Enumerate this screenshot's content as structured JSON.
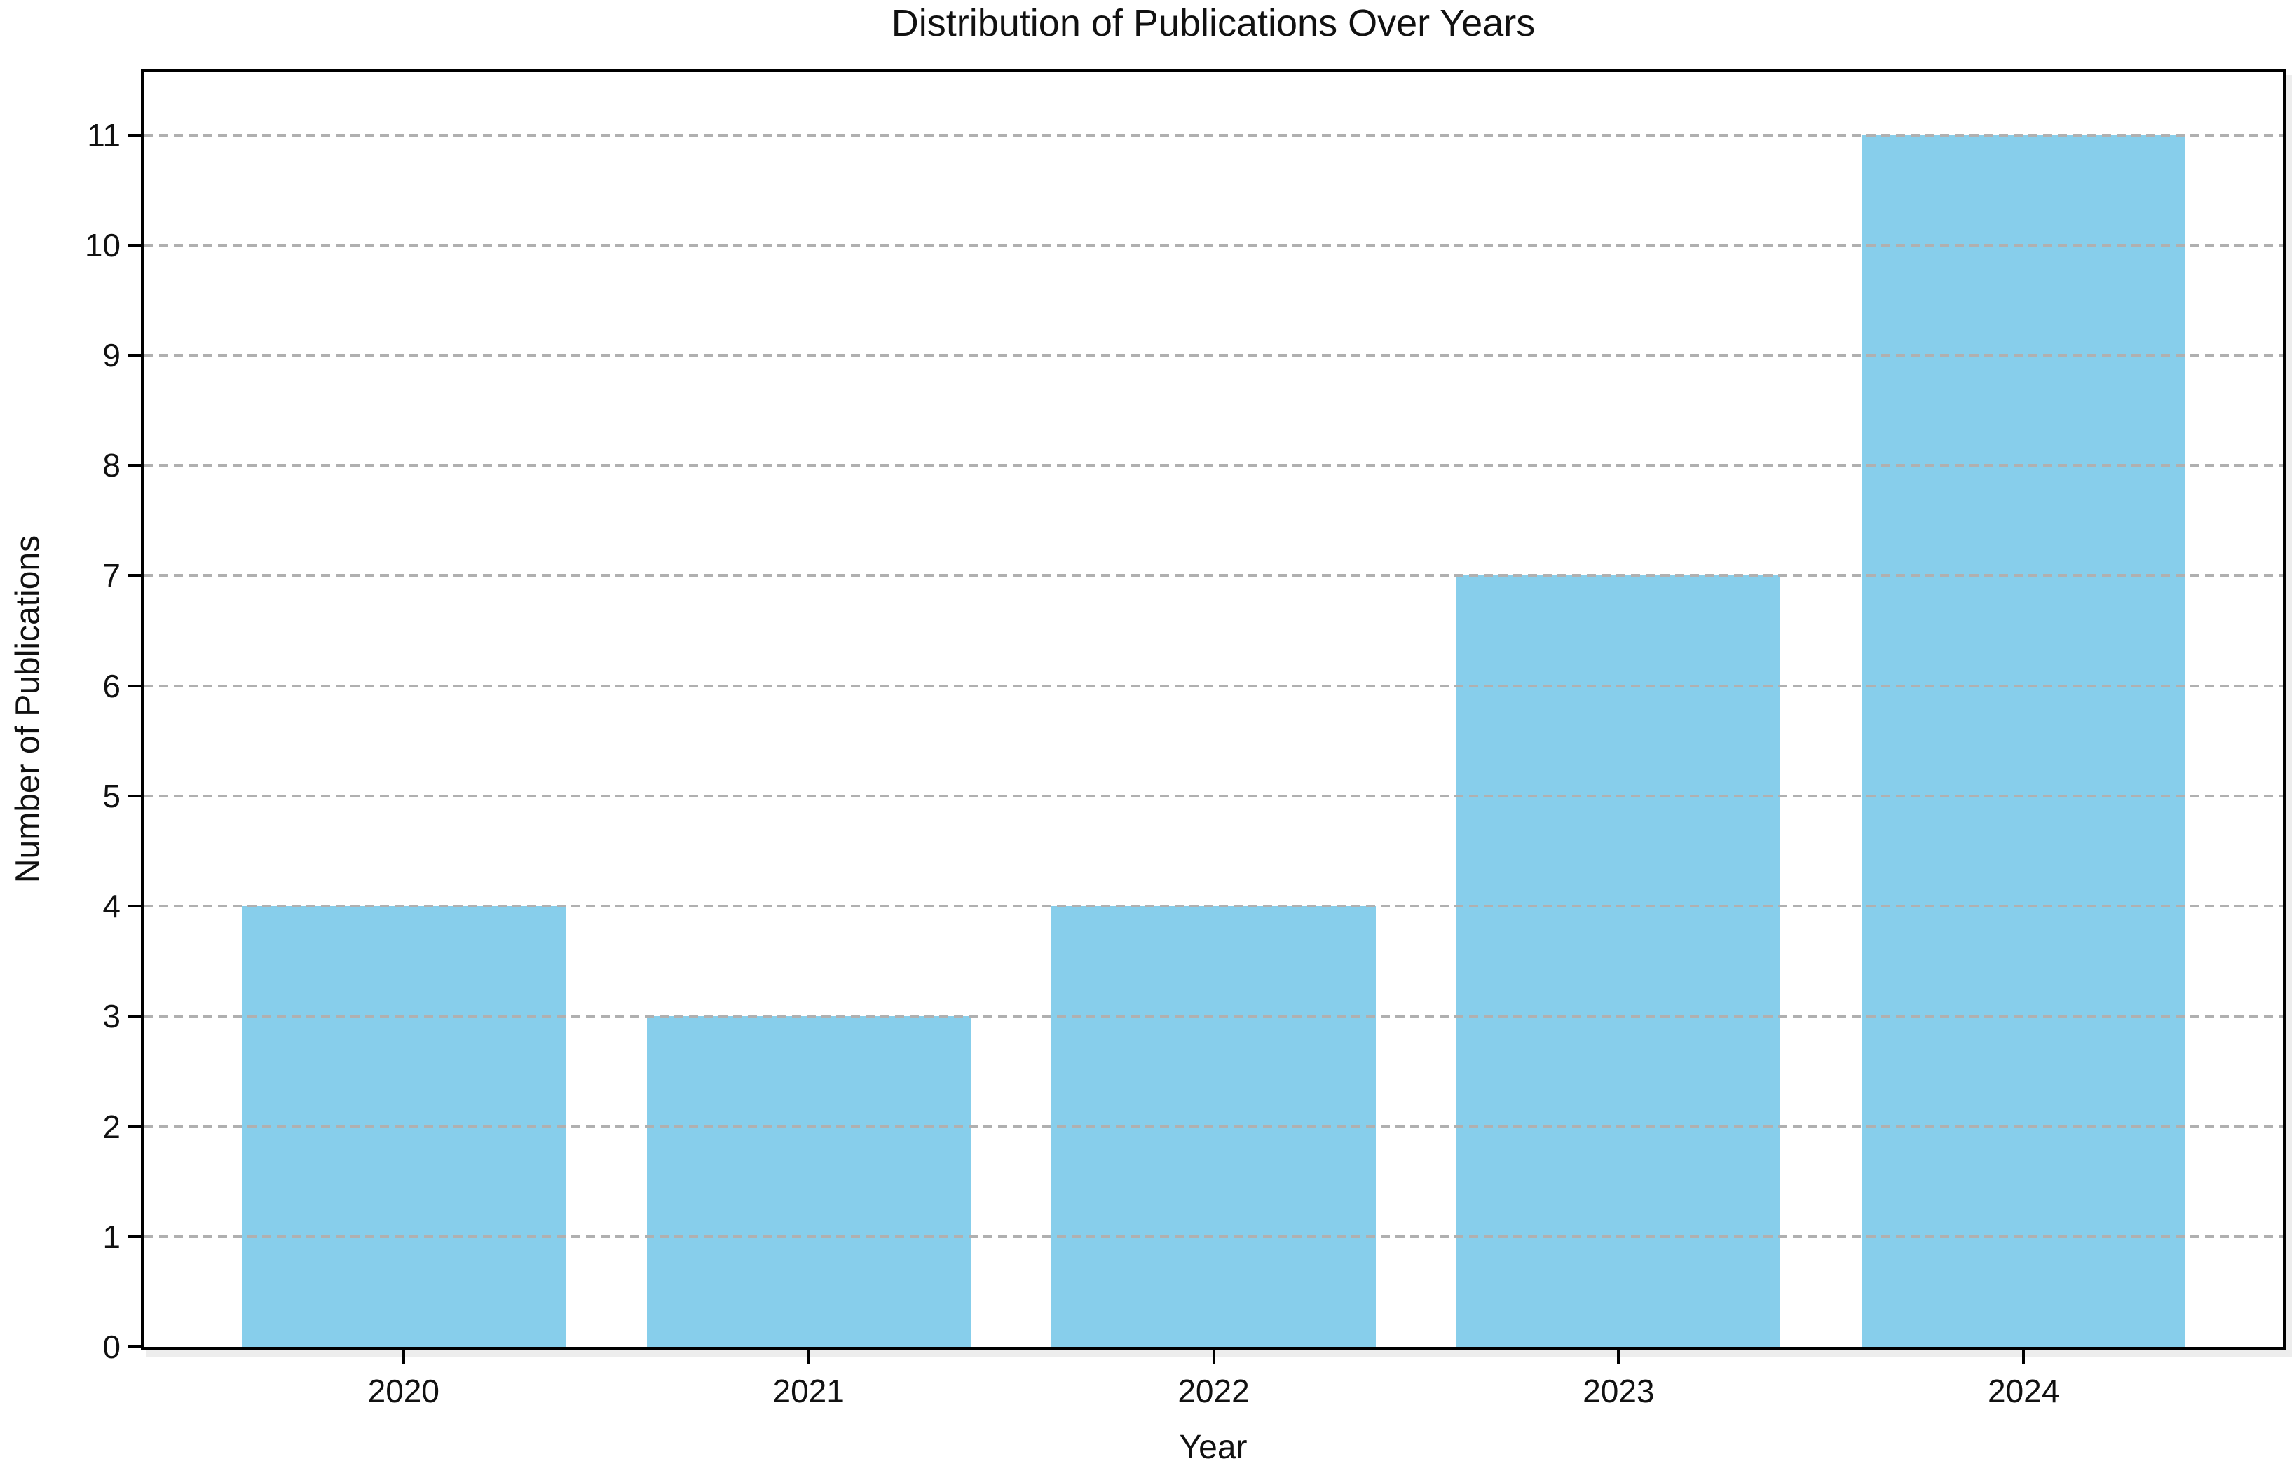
{
  "chart_data": {
    "type": "bar",
    "title": "Distribution of Publications Over Years",
    "xlabel": "Year",
    "ylabel": "Number of Publications",
    "categories": [
      "2020",
      "2021",
      "2022",
      "2023",
      "2024"
    ],
    "values": [
      4,
      3,
      4,
      7,
      11
    ],
    "yticks": [
      0,
      1,
      2,
      3,
      4,
      5,
      6,
      7,
      8,
      9,
      10,
      11
    ],
    "ylim": [
      0,
      11.57
    ],
    "bar_width_fraction": 0.8,
    "grid": "horizontal dashed, drawn above bars",
    "legend_position": "none",
    "colors": {
      "bar": "#87CEEB",
      "grid": "#b0b0b0",
      "axis": "#000000",
      "text": "#111111",
      "background": "#ffffff"
    }
  }
}
